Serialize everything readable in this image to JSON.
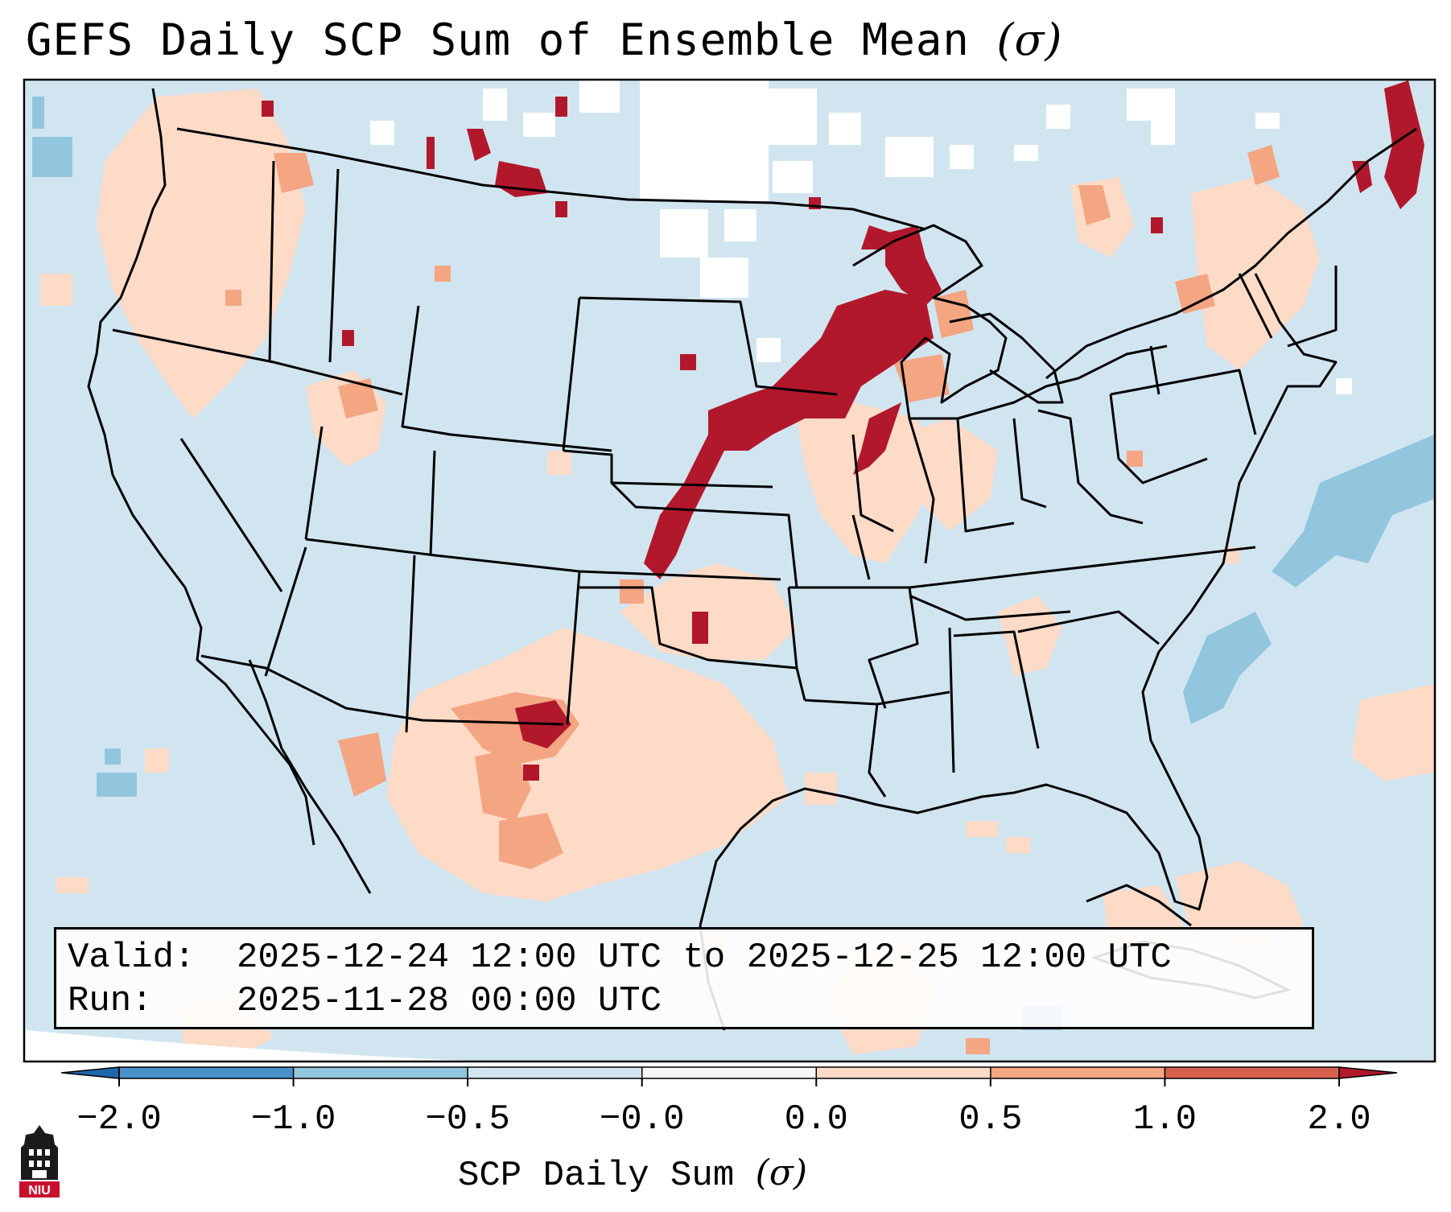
{
  "title": "GEFS Daily SCP Sum of Ensemble Mean",
  "title_symbol": "(σ)",
  "info": {
    "valid_key": "Valid:",
    "valid_value": "2025-12-24 12:00 UTC to 2025-12-25 12:00 UTC",
    "run_key": "Run:",
    "run_value": "2025-11-28 00:00 UTC"
  },
  "colorbar": {
    "label": "SCP Daily Sum",
    "label_symbol": "(σ)",
    "ticks": [
      "−2.0",
      "−1.0",
      "−0.5",
      "−0.0",
      "0.0",
      "0.5",
      "1.0",
      "2.0"
    ],
    "bins": [
      {
        "from": -2.0,
        "to": -1.0,
        "color": "#4a90c8"
      },
      {
        "from": -1.0,
        "to": -0.5,
        "color": "#92c5de"
      },
      {
        "from": -0.5,
        "to": -0.0,
        "color": "#d1e5f0"
      },
      {
        "from": -0.0,
        "to": 0.0,
        "color": "#f7f7f7"
      },
      {
        "from": 0.0,
        "to": 0.5,
        "color": "#fddbc7"
      },
      {
        "from": 0.5,
        "to": 1.0,
        "color": "#f4a582"
      },
      {
        "from": 1.0,
        "to": 2.0,
        "color": "#d6604d"
      }
    ],
    "extend_low_color": "#2166ac",
    "extend_high_color": "#b2182b"
  },
  "map": {
    "projection": "Lambert conformal, CONUS",
    "background_value_color": "#d1e5f0",
    "high_anomaly_color": "#b2182b",
    "moderate_anomaly_color": "#d6604d",
    "weak_positive_color": "#fddbc7",
    "negative_anomaly_color": "#92c5de",
    "zero_color": "#ffffff",
    "boundary_color": "#000000"
  },
  "logo": {
    "text": "NIU",
    "icon": "niu-tower-logo"
  }
}
